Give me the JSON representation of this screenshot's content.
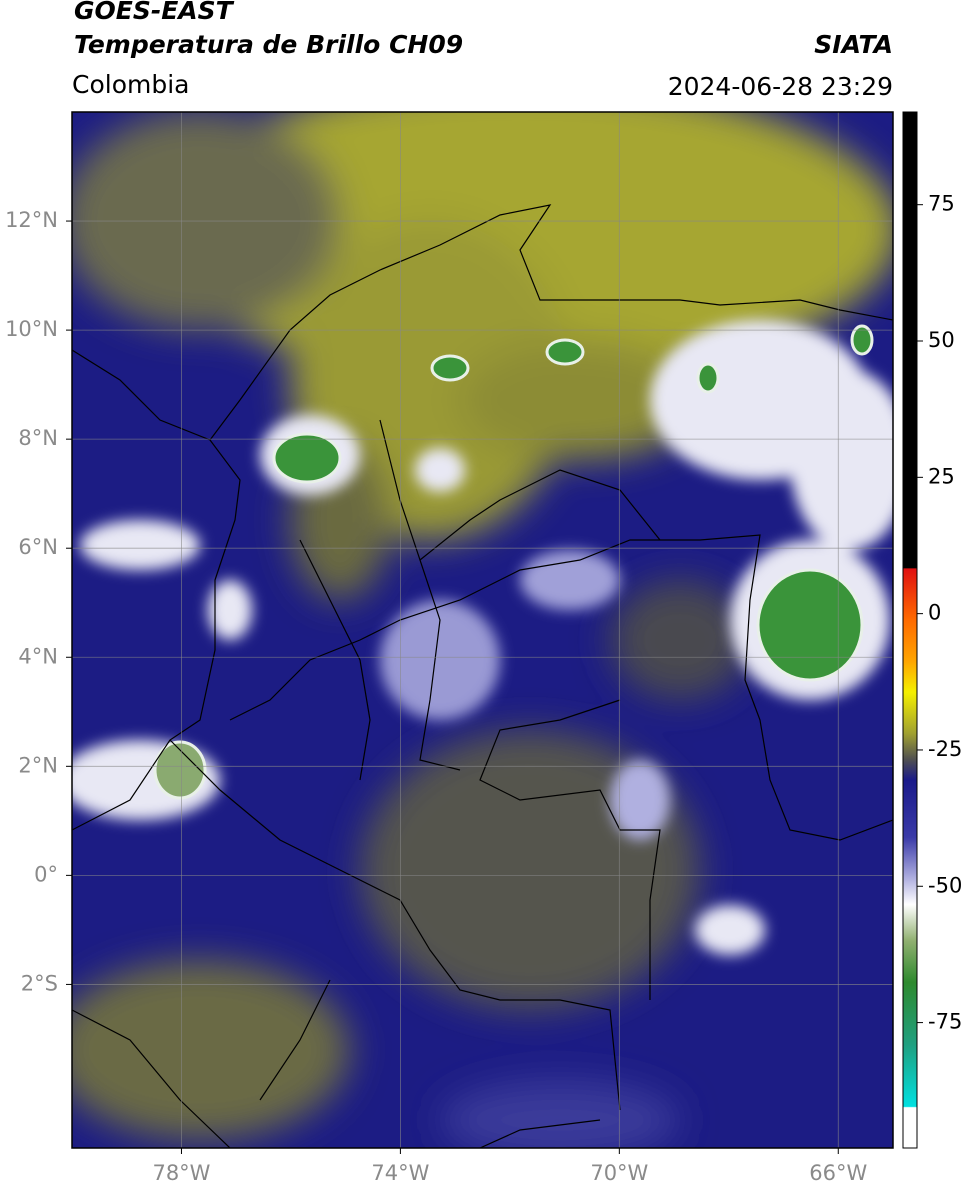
{
  "header": {
    "title": "GOES-EAST",
    "subtitle": "Temperatura de Brillo CH09",
    "source": "SIATA",
    "region": "Colombia",
    "datetime": "2024-06-28 23:29"
  },
  "map": {
    "xlim": [
      -80,
      -65
    ],
    "ylim": [
      -5,
      14
    ],
    "xticks": [
      {
        "value": -78,
        "label": "78°W"
      },
      {
        "value": -74,
        "label": "74°W"
      },
      {
        "value": -70,
        "label": "70°W"
      },
      {
        "value": -66,
        "label": "66°W"
      }
    ],
    "yticks": [
      {
        "value": 12,
        "label": "12°N"
      },
      {
        "value": 10,
        "label": "10°N"
      },
      {
        "value": 8,
        "label": "8°N"
      },
      {
        "value": 6,
        "label": "6°N"
      },
      {
        "value": 4,
        "label": "4°N"
      },
      {
        "value": 2,
        "label": "2°N"
      },
      {
        "value": 0,
        "label": "0°"
      },
      {
        "value": -2,
        "label": "2°S"
      }
    ],
    "grid": true
  },
  "colorbar": {
    "vlim": [
      -98,
      92
    ],
    "ticks": [
      75,
      50,
      25,
      0,
      -25,
      -50,
      -75
    ]
  }
}
